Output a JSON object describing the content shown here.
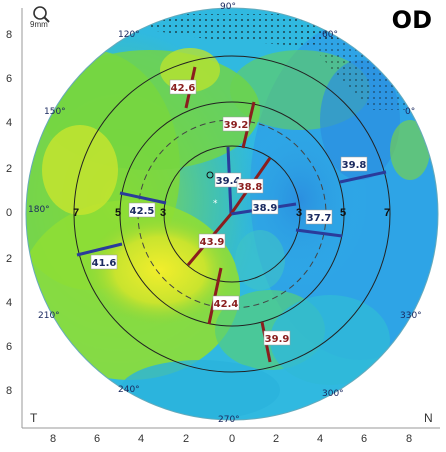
{
  "header": {
    "eye": "OD",
    "zoom_label": "9mm"
  },
  "axis": {
    "y_left_ticks": [
      "8",
      "6",
      "4",
      "2",
      "0",
      "2",
      "4",
      "6",
      "8"
    ],
    "x_bottom_ticks": [
      "8",
      "6",
      "4",
      "2",
      "0",
      "2",
      "4",
      "6",
      "8"
    ],
    "corner_left": "T",
    "corner_right": "N"
  },
  "angles": {
    "a90": "90°",
    "a60": "60°",
    "a120": "120°",
    "a150": "150°",
    "a180": "180°",
    "a0": "0°",
    "a210": "210°",
    "a240": "240°",
    "a270": "270°",
    "a300": "300°",
    "a330": "330°"
  },
  "ring_labels": {
    "left": [
      "7",
      "5",
      "3"
    ],
    "right": [
      "3",
      "5",
      "7"
    ]
  },
  "measurements": [
    {
      "id": "m1",
      "value": "42.6",
      "steep": true
    },
    {
      "id": "m2",
      "value": "39.2",
      "steep": true
    },
    {
      "id": "m3",
      "value": "39.8",
      "steep": false
    },
    {
      "id": "m4",
      "value": "39.4",
      "steep": false
    },
    {
      "id": "m5",
      "value": "38.8",
      "steep": true
    },
    {
      "id": "m6",
      "value": "38.9",
      "steep": false
    },
    {
      "id": "m7",
      "value": "42.5",
      "steep": false
    },
    {
      "id": "m8",
      "value": "37.7",
      "steep": false
    },
    {
      "id": "m9",
      "value": "43.9",
      "steep": true
    },
    {
      "id": "m10",
      "value": "41.6",
      "steep": false
    },
    {
      "id": "m11",
      "value": "42.4",
      "steep": true
    },
    {
      "id": "m12",
      "value": "39.9",
      "steep": true
    }
  ],
  "colors": {
    "flat": "#2a3b9b",
    "steep": "#8a1e1e",
    "map_blue": "#29a7e6",
    "map_cyan": "#35c8d8",
    "map_green": "#7cd63a",
    "map_yellow": "#e8ec2c"
  }
}
